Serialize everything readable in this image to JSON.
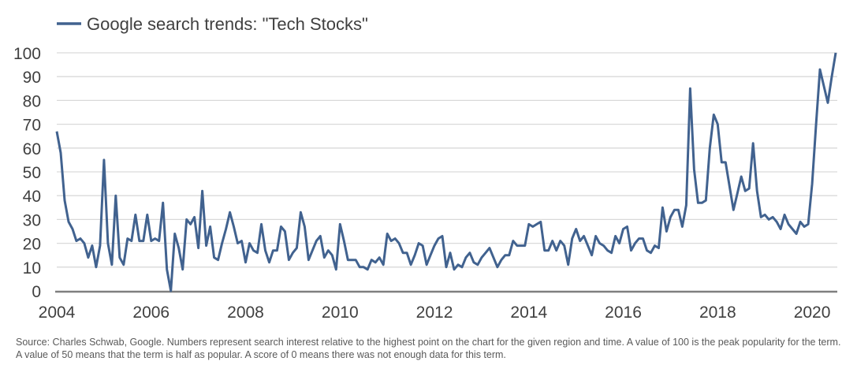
{
  "chart_data": {
    "type": "line",
    "title": "",
    "xlabel": "",
    "ylabel": "",
    "ylim": [
      0,
      100
    ],
    "xlim": [
      "2004-01",
      "2020-07"
    ],
    "yticks": [
      0,
      10,
      20,
      30,
      40,
      50,
      60,
      70,
      80,
      90,
      100
    ],
    "xticks": [
      "2004",
      "2006",
      "2008",
      "2010",
      "2012",
      "2014",
      "2016",
      "2018",
      "2020"
    ],
    "grid": true,
    "legend_position": "top-left",
    "colors": {
      "line": "#41628f",
      "grid": "#d9d9d9",
      "axis": "#7f7f7f"
    },
    "series": [
      {
        "name": "Google search trends: \"Tech Stocks\"",
        "start": "2004-01",
        "frequency": "monthly",
        "values": [
          67,
          58,
          38,
          29,
          26,
          21,
          22,
          20,
          14,
          19,
          10,
          19,
          55,
          20,
          11,
          40,
          14,
          11,
          22,
          21,
          32,
          21,
          21,
          32,
          21,
          22,
          21,
          37,
          9,
          0,
          24,
          18,
          9,
          30,
          28,
          31,
          18,
          42,
          19,
          27,
          14,
          13,
          20,
          26,
          33,
          27,
          20,
          21,
          12,
          20,
          17,
          16,
          28,
          17,
          12,
          17,
          17,
          27,
          25,
          13,
          16,
          18,
          33,
          27,
          13,
          17,
          21,
          23,
          14,
          17,
          15,
          9,
          28,
          21,
          13,
          13,
          13,
          10,
          10,
          9,
          13,
          12,
          14,
          11,
          24,
          21,
          22,
          20,
          16,
          16,
          11,
          15,
          20,
          19,
          11,
          15,
          19,
          22,
          23,
          10,
          16,
          9,
          11,
          10,
          14,
          16,
          12,
          11,
          14,
          16,
          18,
          14,
          10,
          13,
          15,
          15,
          21,
          19,
          19,
          19,
          28,
          27,
          28,
          29,
          17,
          17,
          21,
          17,
          21,
          19,
          11,
          22,
          26,
          21,
          23,
          19,
          15,
          23,
          20,
          19,
          17,
          16,
          23,
          20,
          26,
          27,
          17,
          20,
          22,
          22,
          17,
          16,
          19,
          18,
          35,
          25,
          31,
          34,
          34,
          27,
          36,
          85,
          51,
          37,
          37,
          38,
          60,
          74,
          70,
          54,
          54,
          44,
          34,
          41,
          48,
          42,
          43,
          62,
          42,
          31,
          32,
          30,
          31,
          29,
          26,
          32,
          28,
          26,
          24,
          29,
          27,
          28,
          45,
          70,
          93,
          86,
          79,
          90,
          100
        ]
      }
    ]
  },
  "source_note": "Source: Charles Schwab, Google. Numbers represent search interest relative to the highest point on the chart for the given region and time. A value of 100 is the peak popularity for the term. A value of 50 means that the term is half as popular. A score of 0 means there was not enough data for this term."
}
